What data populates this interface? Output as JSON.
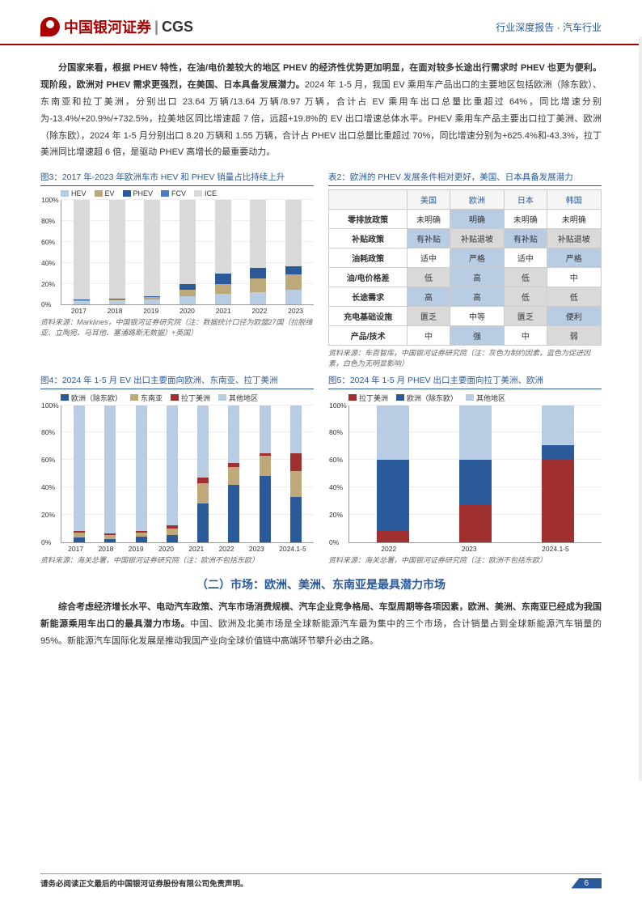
{
  "header": {
    "logo_cn": "中国银河证券",
    "logo_en": "CGS",
    "right_a": "行业深度报告",
    "right_b": "汽车行业"
  },
  "para1": "分国家来看，根据 PHEV 特性，在油/电价差较大的地区 PHEV 的经济性优势更加明显，在面对较多长途出行需求时 PHEV 也更为便利。现阶段，欧洲对 PHEV 需求更强烈，在美国、日本具备发展潜力。",
  "para1b": "2024 年 1-5 月，我国 EV 乘用车产品出口的主要地区包括欧洲（除东欧）、东南亚和拉丁美洲，分别出口 23.64 万辆/13.64 万辆/8.97 万辆，合计占 EV 乘用车出口总量比重超过 64%，同比增速分别为-13.4%/+20.9%/+732.5%，拉美地区同比增速超 7 倍，远超+19.8%的 EV 出口增速总体水平。PHEV 乘用车产品主要出口拉丁美洲、欧洲（除东欧），2024 年 1-5 月分别出口 8.20 万辆和 1.55 万辆，合计占 PHEV 出口总量比重超过 70%，同比增速分别为+625.4%和-43.3%，拉丁美洲同比增速超 6 倍，是驱动 PHEV 高增长的最重要动力。",
  "fig3": {
    "title": "图3：2017 年-2023 年欧洲车市 HEV 和 PHEV 销量占比持续上升",
    "source": "资料来源：Marklines，中国银河证券研究院（注：数据统计口径为欧盟27国（拉脱维亚、立陶宛、马耳他、塞浦路斯无数据）+英国）",
    "legend": [
      {
        "label": "HEV",
        "color": "#b8cce4"
      },
      {
        "label": "EV",
        "color": "#bfa97a"
      },
      {
        "label": "PHEV",
        "color": "#2a5a9a"
      },
      {
        "label": "FCV",
        "color": "#4a7bc0"
      },
      {
        "label": "ICE",
        "color": "#d9d9d9"
      }
    ],
    "yticks": [
      "0%",
      "20%",
      "40%",
      "60%",
      "80%",
      "100%"
    ],
    "x": [
      "2017",
      "2018",
      "2019",
      "2020",
      "2021",
      "2022",
      "2023"
    ],
    "stacks": [
      [
        3,
        1,
        1,
        0,
        95
      ],
      [
        4,
        1,
        1,
        0,
        94
      ],
      [
        5,
        2,
        1,
        0,
        92
      ],
      [
        8,
        6,
        6,
        0,
        80
      ],
      [
        10,
        10,
        10,
        0,
        70
      ],
      [
        12,
        13,
        10,
        0,
        65
      ],
      [
        14,
        15,
        8,
        0,
        63
      ]
    ]
  },
  "tab2": {
    "title": "表2：欧洲的 PHEV 发展条件相对更好，美国、日本具备发展潜力",
    "source": "资料来源：车百智库，中国银河证券研究院（注：灰色为制约因素，蓝色为促进因素，白色为无明显影响）",
    "cols": [
      "",
      "美国",
      "欧洲",
      "日本",
      "韩国"
    ],
    "rows": [
      {
        "h": "零排放政策",
        "v": [
          [
            "未明确",
            ""
          ],
          [
            "明确",
            "b"
          ],
          [
            "未明确",
            ""
          ],
          [
            "未明确",
            ""
          ]
        ]
      },
      {
        "h": "补贴政策",
        "v": [
          [
            "有补贴",
            "b"
          ],
          [
            "补贴退坡",
            "g"
          ],
          [
            "有补贴",
            "b"
          ],
          [
            "补贴退坡",
            "g"
          ]
        ]
      },
      {
        "h": "油耗政策",
        "v": [
          [
            "适中",
            ""
          ],
          [
            "严格",
            "b"
          ],
          [
            "适中",
            ""
          ],
          [
            "严格",
            "b"
          ]
        ]
      },
      {
        "h": "油/电价格差",
        "v": [
          [
            "低",
            "g"
          ],
          [
            "高",
            "b"
          ],
          [
            "低",
            "g"
          ],
          [
            "中",
            ""
          ]
        ]
      },
      {
        "h": "长途需求",
        "v": [
          [
            "高",
            "b"
          ],
          [
            "高",
            "b"
          ],
          [
            "低",
            "g"
          ],
          [
            "低",
            "g"
          ]
        ]
      },
      {
        "h": "充电基础设施",
        "v": [
          [
            "匮乏",
            "g"
          ],
          [
            "中等",
            ""
          ],
          [
            "匮乏",
            "g"
          ],
          [
            "便利",
            "b"
          ]
        ]
      },
      {
        "h": "产品/技术",
        "v": [
          [
            "中",
            ""
          ],
          [
            "强",
            "b"
          ],
          [
            "中",
            ""
          ],
          [
            "弱",
            "g"
          ]
        ]
      }
    ]
  },
  "fig4": {
    "title": "图4：2024 年 1-5 月 EV 出口主要面向欧洲、东南亚、拉丁美洲",
    "source": "资料来源：海关总署，中国银河证券研究院（注：欧洲不包括东欧）",
    "legend": [
      {
        "label": "欧洲（除东欧）",
        "color": "#2a5a9a"
      },
      {
        "label": "东南亚",
        "color": "#bfa97a"
      },
      {
        "label": "拉丁美洲",
        "color": "#a03030"
      },
      {
        "label": "其他地区",
        "color": "#b8cce4"
      }
    ],
    "yticks": [
      "0%",
      "20%",
      "40%",
      "60%",
      "80%",
      "100%"
    ],
    "x": [
      "2017",
      "2018",
      "2019",
      "2020",
      "2021",
      "2022",
      "2023",
      "2024.1-5"
    ],
    "stacks": [
      [
        3,
        4,
        1,
        92
      ],
      [
        2,
        3,
        1,
        94
      ],
      [
        4,
        3,
        1,
        92
      ],
      [
        5,
        5,
        2,
        88
      ],
      [
        28,
        15,
        4,
        53
      ],
      [
        42,
        13,
        3,
        42
      ],
      [
        48,
        15,
        2,
        35
      ],
      [
        33,
        19,
        13,
        35
      ]
    ]
  },
  "fig5": {
    "title": "图5：2024 年 1-5 月 PHEV 出口主要面向拉丁美洲、欧洲",
    "source": "资料来源：海关总署，中国银河证券研究院（注：欧洲不包括东欧）",
    "legend": [
      {
        "label": "拉丁美洲",
        "color": "#a03030"
      },
      {
        "label": "欧洲（除东欧）",
        "color": "#2a5a9a"
      },
      {
        "label": "其他地区",
        "color": "#b8cce4"
      }
    ],
    "yticks": [
      "0%",
      "20%",
      "40%",
      "60%",
      "80%",
      "100%"
    ],
    "x": [
      "2022",
      "2023",
      "2024.1-5"
    ],
    "stacks": [
      [
        8,
        52,
        40
      ],
      [
        27,
        33,
        40
      ],
      [
        60,
        11,
        29
      ]
    ]
  },
  "section2": "（二）市场：欧洲、美洲、东南亚是最具潜力市场",
  "para2a": "综合考虑经济增长水平、电动汽车政策、汽车市场消费规模、汽车企业竞争格局、车型周期等各项因素，欧洲、美洲、东南亚已经成为我国新能源乘用车出口的最具潜力市场。",
  "para2b": "中国、欧洲及北美市场是全球新能源汽车最为集中的三个市场，合计销量占到全球新能源汽车销量的 95%。新能源汽车国际化发展是推动我国产业向全球价值链中高端环节攀升必由之路。",
  "footer": {
    "disclaimer": "请务必阅读正文最后的中国银河证券股份有限公司免责声明。",
    "page": "6"
  }
}
